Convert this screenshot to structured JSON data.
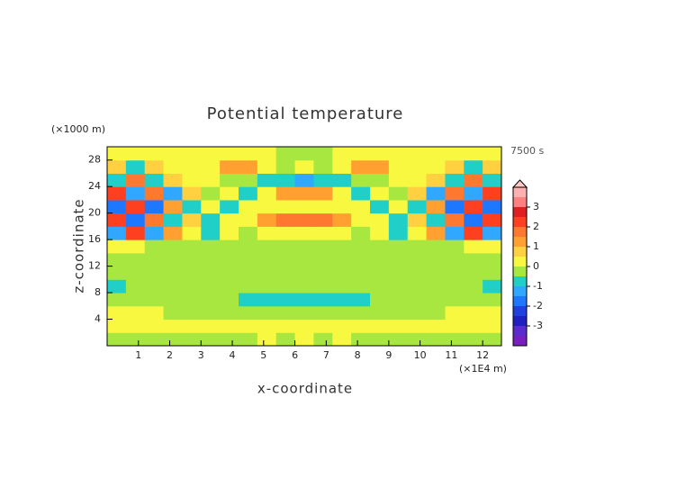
{
  "chart_data": {
    "type": "contourf",
    "title": "Potential temperature",
    "x_label": "x-coordinate",
    "y_label": "z-coordinate",
    "x_unit": "(×1E4 m)",
    "y_unit": "(×1000 m)",
    "time_label": "7500 s",
    "xlim": [
      0,
      12.6
    ],
    "ylim": [
      0,
      30
    ],
    "xticks": [
      1,
      2,
      3,
      4,
      5,
      6,
      7,
      8,
      9,
      10,
      11,
      12
    ],
    "yticks": [
      4,
      8,
      12,
      16,
      20,
      24,
      28
    ],
    "x": [
      0.3,
      0.9,
      1.5,
      2.1,
      2.7,
      3.3,
      3.9,
      4.5,
      5.1,
      5.7,
      6.3,
      6.9,
      7.5,
      8.1,
      8.7,
      9.3,
      9.9,
      10.5,
      11.1,
      11.7,
      12.3
    ],
    "y": [
      1,
      3,
      5,
      7,
      9,
      11,
      13,
      15,
      17,
      19,
      21,
      23,
      25,
      27,
      29
    ],
    "z": [
      [
        -0.3,
        -0.3,
        -0.3,
        -0.3,
        -0.3,
        -0.3,
        -0.3,
        -0.3,
        0.2,
        -0.3,
        0.2,
        -0.3,
        0.2,
        -0.3,
        -0.3,
        -0.3,
        -0.3,
        -0.3,
        -0.3,
        -0.3,
        -0.3
      ],
      [
        0.3,
        0.3,
        0.3,
        0.3,
        0.3,
        0.3,
        0.3,
        0.3,
        0.3,
        0.3,
        0.3,
        0.3,
        0.3,
        0.3,
        0.3,
        0.3,
        0.3,
        0.3,
        0.3,
        0.3,
        0.3
      ],
      [
        0.2,
        0.2,
        0.2,
        -0.2,
        -0.2,
        -0.2,
        -0.2,
        -0.2,
        -0.2,
        -0.2,
        -0.2,
        -0.2,
        -0.2,
        -0.2,
        -0.2,
        -0.2,
        -0.2,
        -0.2,
        0.2,
        0.2,
        0.2
      ],
      [
        -0.3,
        -0.3,
        -0.3,
        -0.3,
        -0.3,
        -0.3,
        -0.3,
        -0.7,
        -0.6,
        -0.7,
        -0.8,
        -0.7,
        -0.6,
        -0.7,
        -0.3,
        -0.3,
        -0.3,
        -0.3,
        -0.3,
        -0.3,
        -0.3
      ],
      [
        -0.7,
        -0.3,
        -0.3,
        -0.3,
        -0.3,
        -0.3,
        -0.3,
        -0.3,
        -0.3,
        -0.3,
        -0.3,
        -0.3,
        -0.3,
        -0.3,
        -0.3,
        -0.3,
        -0.3,
        -0.3,
        -0.3,
        -0.3,
        -0.7
      ],
      [
        -0.3,
        -0.3,
        -0.3,
        -0.3,
        -0.3,
        -0.3,
        -0.3,
        -0.3,
        -0.3,
        -0.3,
        -0.3,
        -0.3,
        -0.3,
        -0.3,
        -0.3,
        -0.3,
        -0.3,
        -0.3,
        -0.3,
        -0.3,
        -0.3
      ],
      [
        -0.3,
        -0.3,
        -0.3,
        -0.3,
        -0.3,
        -0.3,
        -0.3,
        -0.3,
        -0.3,
        -0.3,
        -0.3,
        -0.3,
        -0.3,
        -0.3,
        -0.3,
        -0.3,
        -0.3,
        -0.3,
        -0.3,
        -0.3,
        -0.3
      ],
      [
        0.3,
        0.3,
        -0.3,
        -0.3,
        -0.3,
        -0.3,
        -0.3,
        -0.3,
        -0.3,
        -0.3,
        -0.3,
        -0.3,
        -0.3,
        -0.3,
        -0.3,
        -0.3,
        -0.3,
        -0.3,
        -0.3,
        0.3,
        0.3
      ],
      [
        -1.2,
        2,
        -1.5,
        1,
        0.3,
        -0.6,
        0.3,
        -0.3,
        0.3,
        0.3,
        0.3,
        0.3,
        0.3,
        -0.3,
        0.3,
        -0.6,
        0.3,
        1,
        -1.5,
        2,
        -1.2
      ],
      [
        2.3,
        -1.8,
        1.5,
        -1,
        0.6,
        -0.6,
        0.3,
        0.3,
        1.2,
        1.5,
        1.5,
        1.5,
        1.2,
        0.3,
        0.3,
        -0.6,
        0.6,
        -1,
        1.5,
        -1.8,
        2.3
      ],
      [
        -1.6,
        2.2,
        -1.6,
        1.2,
        -0.8,
        0.3,
        -0.6,
        0.3,
        0.3,
        0.3,
        0.3,
        0.3,
        0.3,
        0.3,
        -0.6,
        0.3,
        -0.8,
        1.2,
        -1.6,
        2.2,
        -1.6
      ],
      [
        2.2,
        -1.3,
        1.8,
        -1.2,
        0.5,
        -0.3,
        0.3,
        -0.8,
        0.3,
        1.2,
        1.3,
        1.2,
        0.3,
        -0.8,
        0.3,
        -0.3,
        0.5,
        -1.2,
        1.8,
        -1.3,
        2.2
      ],
      [
        -1,
        1.5,
        -0.8,
        0.6,
        0.3,
        0.3,
        -0.3,
        -0.3,
        -0.6,
        -1,
        -1.1,
        -1,
        -0.6,
        -0.3,
        -0.3,
        0.3,
        0.3,
        0.6,
        -0.8,
        1.5,
        -1
      ],
      [
        0.8,
        -0.6,
        0.8,
        0.3,
        0.3,
        0.3,
        1,
        1.1,
        0.3,
        -0.3,
        0.3,
        -0.3,
        0.3,
        1.1,
        1,
        0.3,
        0.3,
        0.3,
        0.8,
        -0.6,
        0.8
      ],
      [
        0.3,
        0.3,
        0.3,
        0.3,
        0.3,
        0.3,
        0.3,
        0.3,
        0.3,
        -0.3,
        -0.3,
        -0.3,
        0.3,
        0.3,
        0.3,
        0.3,
        0.3,
        0.3,
        0.3,
        0.3,
        0.3
      ]
    ],
    "levels": [
      -4,
      -3.5,
      -3,
      -2.5,
      -2,
      -1.5,
      -1,
      -0.5,
      0,
      0.5,
      1,
      1.5,
      2,
      2.5,
      3,
      3.5,
      4
    ],
    "colors": [
      "#7a1fbf",
      "#5a2cd0",
      "#2020c0",
      "#2040e0",
      "#1e78ff",
      "#30a8ff",
      "#20d0c8",
      "#a8e640",
      "#f8f840",
      "#ffd040",
      "#ffa030",
      "#ff7830",
      "#ff4020",
      "#e02020",
      "#ff8080",
      "#ffb0b0"
    ],
    "extend_color": "#ffc8c8",
    "cticks": [
      -3,
      -2,
      -1,
      0,
      1,
      2,
      3
    ]
  }
}
